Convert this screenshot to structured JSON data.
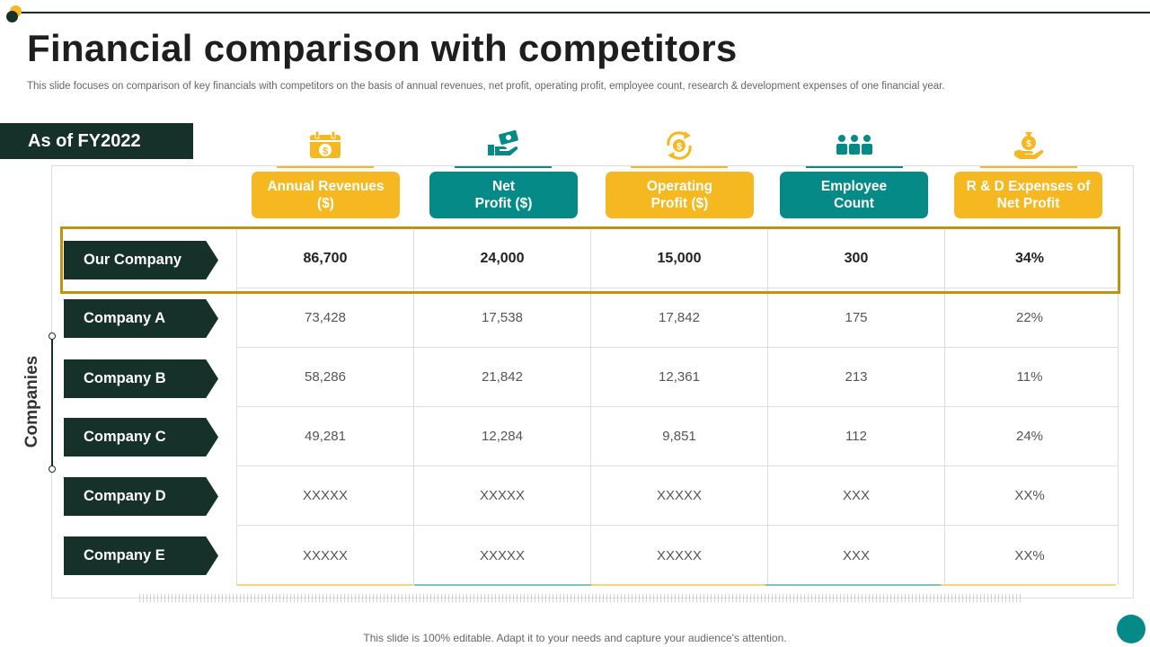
{
  "title": "Financial comparison with competitors",
  "subtitle": "This slide focuses on comparison of key financials with competitors on the basis of annual revenues, net profit, operating profit, employee count, research & development expenses of one financial year.",
  "period": "As of FY2022",
  "axis_label": "Companies",
  "columns": [
    {
      "label": "Annual Revenues\n($)",
      "color": "#f5b820",
      "icon": "calendar-dollar-icon"
    },
    {
      "label": "Net\nProfit ($)",
      "color": "#068a88",
      "icon": "hand-money-icon"
    },
    {
      "label": "Operating\nProfit ($)",
      "color": "#f5b820",
      "icon": "dollar-cycle-icon"
    },
    {
      "label": "Employee\nCount",
      "color": "#068a88",
      "icon": "team-icon"
    },
    {
      "label": "R & D Expenses of\nNet Profit",
      "color": "#f5b820",
      "icon": "hand-moneybag-icon"
    }
  ],
  "rows": [
    {
      "company": "Our Company",
      "values": [
        "86,700",
        "24,000",
        "15,000",
        "300",
        "34%"
      ]
    },
    {
      "company": "Company A",
      "values": [
        "73,428",
        "17,538",
        "17,842",
        "175",
        "22%"
      ]
    },
    {
      "company": "Company B",
      "values": [
        "58,286",
        "21,842",
        "12,361",
        "213",
        "11%"
      ]
    },
    {
      "company": "Company C",
      "values": [
        "49,281",
        "12,284",
        "9,851",
        "112",
        "24%"
      ]
    },
    {
      "company": "Company D",
      "values": [
        "XXXXX",
        "XXXXX",
        "XXXXX",
        "XXX",
        "XX%"
      ]
    },
    {
      "company": "Company E",
      "values": [
        "XXXXX",
        "XXXXX",
        "XXXXX",
        "XXX",
        "XX%"
      ]
    }
  ],
  "footer": "This slide is 100% editable. Adapt it to your needs and capture your audience's attention.",
  "colors": {
    "dark": "#16302a",
    "yellow": "#f5b820",
    "teal": "#068a88",
    "highlight": "#c1940f"
  }
}
